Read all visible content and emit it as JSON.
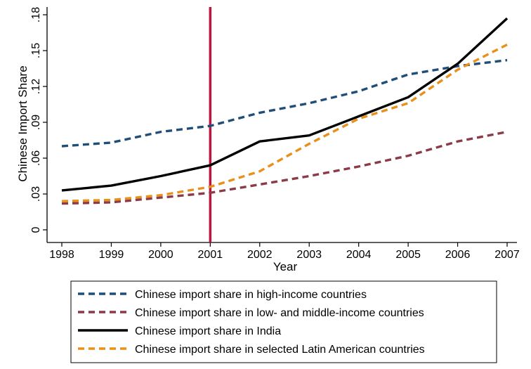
{
  "chart_data": {
    "type": "line",
    "title": "",
    "xlabel": "Year",
    "ylabel": "Chinese Import Share",
    "x": [
      1998,
      1999,
      2000,
      2001,
      2002,
      2003,
      2004,
      2005,
      2006,
      2007
    ],
    "x_tick_labels": [
      "1998",
      "1999",
      "2000",
      "2001",
      "2002",
      "2003",
      "2004",
      "2005",
      "2006",
      "2007"
    ],
    "y_ticks": [
      0,
      0.03,
      0.06,
      0.09,
      0.12,
      0.15,
      0.18
    ],
    "y_tick_labels": [
      "0",
      ".03",
      ".06",
      ".09",
      ".12",
      ".15",
      ".18"
    ],
    "xlim": [
      1998,
      2007
    ],
    "ylim": [
      0,
      0.18
    ],
    "grid": false,
    "vline": {
      "x": 2001,
      "color": "#c0143c"
    },
    "legend_position": "bottom",
    "series": [
      {
        "name": "Chinese import share in high-income countries",
        "style": "dashed",
        "color": "#1f4e79",
        "values": [
          0.07,
          0.073,
          0.082,
          0.087,
          0.098,
          0.106,
          0.116,
          0.13,
          0.137,
          0.142
        ]
      },
      {
        "name": "Chinese import share in low- and middle-income countries",
        "style": "dashed",
        "color": "#8b3a47",
        "values": [
          0.022,
          0.023,
          0.027,
          0.031,
          0.038,
          0.045,
          0.053,
          0.062,
          0.074,
          0.082
        ]
      },
      {
        "name": "Chinese import share in India",
        "style": "solid",
        "color": "#000000",
        "values": [
          0.033,
          0.037,
          0.045,
          0.054,
          0.074,
          0.079,
          0.095,
          0.111,
          0.139,
          0.177
        ]
      },
      {
        "name": "Chinese import share in selected Latin American countries",
        "style": "dashed",
        "color": "#e8901a",
        "values": [
          0.024,
          0.025,
          0.029,
          0.036,
          0.049,
          0.072,
          0.093,
          0.106,
          0.134,
          0.155
        ]
      }
    ]
  }
}
